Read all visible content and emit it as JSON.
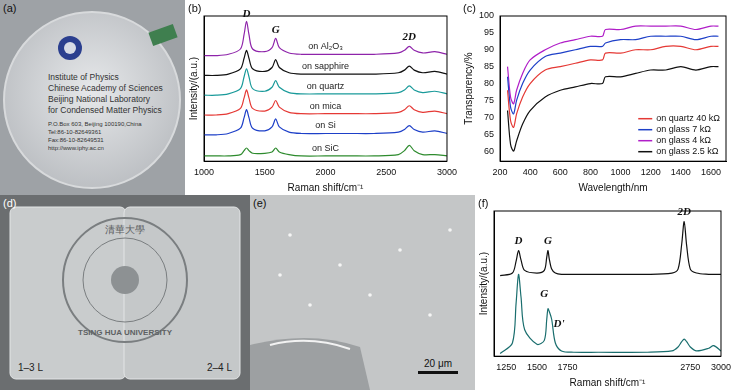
{
  "photos": [
    {
      "panel": "(a)",
      "texts": [
        "Institute of Physics",
        "Chinese Academy of Sciences",
        "Beijing National Laboratory",
        "for Condensed Matter Physics",
        "P.O.Box 603, Beijing 100190,China",
        "Tel:86-10-82649361",
        "Fax:86-10-82649531",
        "http://www.iphy.ac.cn"
      ]
    },
    {
      "panel": "(d)",
      "logo_texts": [
        "清華大學",
        "TSING HUA UNIVERSITY"
      ],
      "labels": [
        "1–3 L",
        "2–4 L"
      ]
    },
    {
      "panel": "(e)",
      "scale_bar": "20 μm"
    }
  ],
  "chart_data": [
    {
      "panel": "(b)",
      "type": "line",
      "x_label": "Raman shift/cm⁻¹",
      "y_label": "Intensity/(a.u.)",
      "x": [
        1000,
        1100,
        1200,
        1300,
        1330,
        1350,
        1370,
        1400,
        1500,
        1560,
        1590,
        1620,
        1700,
        1800,
        2000,
        2200,
        2400,
        2600,
        2650,
        2690,
        2730,
        2800,
        2900,
        3000
      ],
      "series": [
        {
          "name": "on Al₂O₃",
          "color": "#8e24aa",
          "values": [
            8.0,
            8.0,
            8.1,
            8.5,
            9.6,
            10.6,
            9.6,
            8.5,
            8.3,
            8.6,
            9.3,
            8.6,
            8.2,
            8.1,
            8.1,
            8.1,
            8.1,
            8.2,
            8.4,
            8.7,
            8.4,
            8.2,
            8.3,
            8.1
          ]
        },
        {
          "name": "on sapphire",
          "color": "#111111",
          "values": [
            6.5,
            6.5,
            6.6,
            7.0,
            7.8,
            8.4,
            7.8,
            7.0,
            6.8,
            7.1,
            7.7,
            7.1,
            6.7,
            6.6,
            6.6,
            6.6,
            6.6,
            6.7,
            6.9,
            7.2,
            6.9,
            6.7,
            6.8,
            6.6
          ]
        },
        {
          "name": "on quartz",
          "color": "#1a9a9a",
          "values": [
            5.0,
            5.0,
            5.1,
            5.5,
            6.4,
            7.0,
            6.4,
            5.5,
            5.3,
            5.6,
            6.1,
            5.6,
            5.2,
            5.1,
            5.1,
            5.1,
            5.1,
            5.2,
            5.4,
            5.7,
            5.4,
            5.2,
            5.3,
            5.1
          ]
        },
        {
          "name": "on mica",
          "color": "#e53935",
          "values": [
            3.5,
            3.5,
            3.6,
            4.0,
            4.8,
            5.4,
            4.8,
            4.0,
            3.8,
            4.1,
            4.6,
            4.1,
            3.7,
            3.6,
            3.6,
            3.6,
            3.6,
            3.7,
            3.9,
            4.2,
            3.9,
            3.7,
            3.8,
            3.6
          ]
        },
        {
          "name": "on Si",
          "color": "#1e40c8",
          "values": [
            2.0,
            2.0,
            2.1,
            2.5,
            3.3,
            3.9,
            3.3,
            2.5,
            2.3,
            2.6,
            3.2,
            2.6,
            2.2,
            2.1,
            2.1,
            2.1,
            2.1,
            2.2,
            2.4,
            2.7,
            2.4,
            2.2,
            2.3,
            2.1
          ]
        },
        {
          "name": "on SiC",
          "color": "#2e8b2e",
          "values": [
            0.4,
            0.4,
            0.4,
            0.5,
            0.8,
            1.0,
            0.8,
            0.6,
            0.6,
            0.7,
            1.0,
            0.7,
            0.5,
            0.4,
            0.4,
            0.4,
            0.4,
            0.5,
            0.8,
            1.2,
            0.8,
            0.5,
            0.5,
            0.4
          ]
        }
      ],
      "xlim": [
        1000,
        3000
      ],
      "xticks": [
        1000,
        1500,
        2000,
        2500,
        3000
      ],
      "ylim": [
        0,
        11
      ],
      "tick_labels": "x",
      "grid": false,
      "annotations": [
        {
          "text": "D",
          "x": 1350,
          "y": 10.7
        },
        {
          "text": "G",
          "x": 1590,
          "y": 9.5
        },
        {
          "text": "2D",
          "x": 2690,
          "y": 9.0
        }
      ]
    },
    {
      "panel": "(c)",
      "type": "line",
      "x_label": "Wavelength/nm",
      "y_label": "Transparency/%",
      "x": [
        250,
        270,
        290,
        310,
        350,
        400,
        500,
        600,
        700,
        800,
        880,
        900,
        1000,
        1100,
        1200,
        1300,
        1400,
        1500,
        1600,
        1650
      ],
      "series": [
        {
          "name": "on quartz 40 kΩ",
          "color": "#e53935",
          "values": [
            78,
            69,
            67,
            71,
            76,
            80,
            84,
            85,
            86,
            87,
            87,
            89,
            89,
            90,
            90,
            91,
            91,
            90,
            91,
            91
          ]
        },
        {
          "name": "on glass 7 kΩ",
          "color": "#1e40c8",
          "values": [
            82,
            73,
            71,
            75,
            80,
            84,
            88,
            89,
            90,
            91,
            91,
            92,
            93,
            93,
            94,
            94,
            94,
            93,
            94,
            94
          ]
        },
        {
          "name": "on glass 4 kΩ",
          "color": "#b01ec8",
          "values": [
            85,
            76,
            74,
            78,
            83,
            87,
            90,
            92,
            93,
            94,
            94,
            96,
            96,
            97,
            97,
            97,
            97,
            96,
            97,
            97
          ]
        },
        {
          "name": "on glass 2.5 kΩ",
          "color": "#111111",
          "values": [
            72,
            62,
            60,
            63,
            68,
            72,
            76,
            78,
            79,
            80,
            80,
            82,
            82,
            83,
            84,
            84,
            85,
            84,
            85,
            85
          ]
        }
      ],
      "xlim": [
        200,
        1700
      ],
      "xticks": [
        200,
        400,
        600,
        800,
        1000,
        1200,
        1400,
        1600
      ],
      "ylim": [
        57,
        100
      ],
      "yticks": [
        60,
        65,
        70,
        75,
        80,
        85,
        90,
        95,
        100
      ],
      "grid": false,
      "legend": "lower right"
    },
    {
      "panel": "(f)",
      "type": "line",
      "x_label": "Raman shift/cm⁻¹",
      "y_label": "Intensity/(a.u.)",
      "x": [
        1200,
        1300,
        1330,
        1350,
        1370,
        1400,
        1500,
        1560,
        1580,
        1590,
        1600,
        1620,
        1650,
        1700,
        1800,
        2000,
        2400,
        2600,
        2650,
        2680,
        2700,
        2720,
        2750,
        2800,
        2900,
        2940,
        3000
      ],
      "series": [
        {
          "color": "#111111",
          "values": [
            6.1,
            6.3,
            7.2,
            8.0,
            7.3,
            6.5,
            6.3,
            6.5,
            7.5,
            8.0,
            7.4,
            6.6,
            6.3,
            6.2,
            6.2,
            6.2,
            6.2,
            6.3,
            6.6,
            8.5,
            10.2,
            8.4,
            6.6,
            6.3,
            6.2,
            6.2,
            6.2
          ]
        },
        {
          "color": "#1a6e6e",
          "values": [
            0.2,
            1.0,
            4.0,
            6.2,
            4.5,
            2.0,
            0.9,
            1.2,
            2.8,
            3.6,
            3.4,
            2.8,
            1.0,
            0.4,
            0.3,
            0.3,
            0.3,
            0.4,
            0.7,
            1.1,
            1.3,
            1.1,
            0.7,
            0.4,
            0.6,
            0.8,
            0.4
          ]
        }
      ],
      "xlim": [
        1150,
        3000
      ],
      "xticks": [
        1250,
        1500,
        1750,
        2750,
        3000
      ],
      "ylim": [
        0,
        11
      ],
      "tick_labels": "x",
      "grid": false,
      "annotations": [
        {
          "text": "D",
          "x": 1350,
          "y": 8.3
        },
        {
          "text": "G",
          "x": 1590,
          "y": 8.3
        },
        {
          "text": "2D",
          "x": 2700,
          "y": 10.5
        },
        {
          "text": "G",
          "x": 1560,
          "y": 4.3
        },
        {
          "text": "D'",
          "x": 1680,
          "y": 2.0
        }
      ]
    }
  ]
}
